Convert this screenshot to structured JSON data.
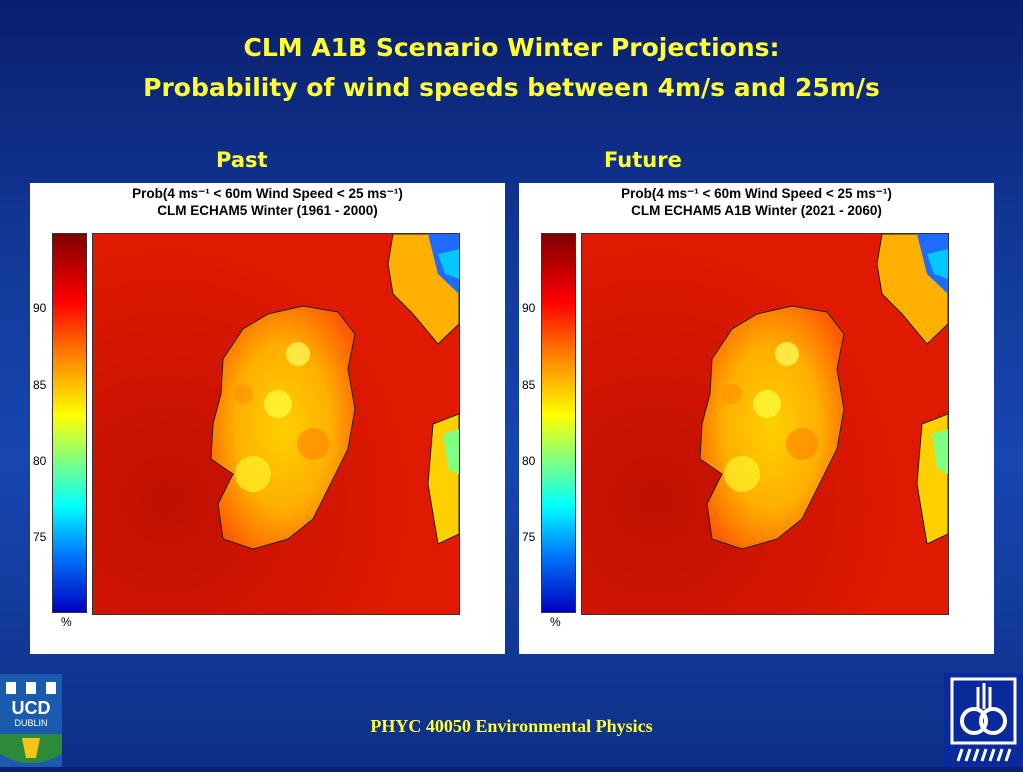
{
  "header": {
    "line1": "CLM A1B Scenario Winter Projections:",
    "line2": "Probability of wind speeds between 4m/s and 25m/s"
  },
  "panels": [
    {
      "label": "Past",
      "title1": "Prob(4 ms⁻¹ < 60m Wind Speed < 25 ms⁻¹)",
      "title2": "CLM ECHAM5 Winter (1961 - 2000)"
    },
    {
      "label": "Future",
      "title1": "Prob(4 ms⁻¹ < 60m Wind Speed < 25 ms⁻¹)",
      "title2": "CLM ECHAM5 A1B Winter (2021 - 2060)"
    }
  ],
  "colorbar": {
    "ticks": [
      "90",
      "85",
      "80",
      "75"
    ],
    "unit": "%"
  },
  "footer": {
    "course": "PHYC 40050 Environmental Physics"
  },
  "logos": {
    "left": "UCD DUBLIN",
    "left_icon": "ucd-crest-icon",
    "right_icon": "icarus-logo-icon"
  }
}
